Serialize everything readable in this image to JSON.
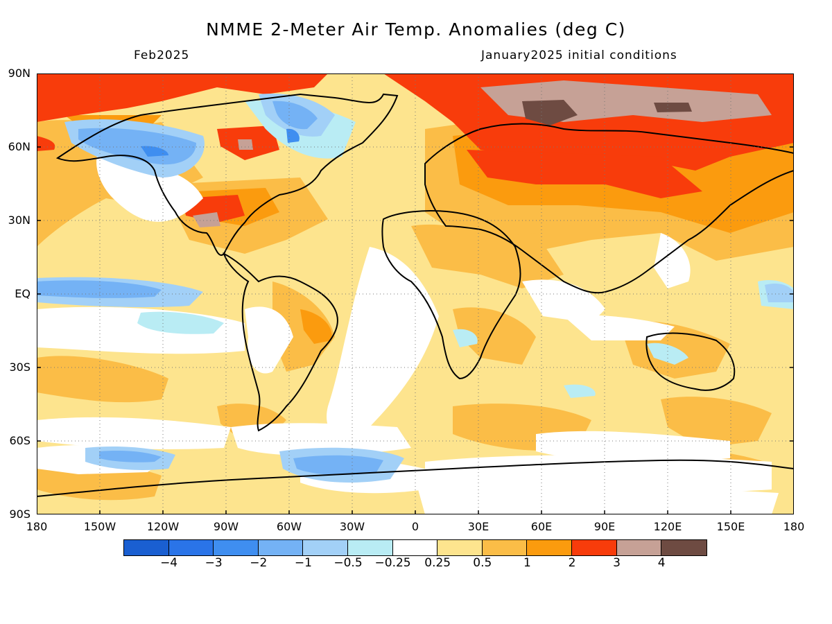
{
  "title": "NMME 2-Meter Air Temp. Anomalies (deg C)",
  "valid_month": "Feb2025",
  "initial_conditions": "January2025 initial conditions",
  "lat_labels": [
    "90N",
    "60N",
    "30N",
    "EQ",
    "30S",
    "60S",
    "90S"
  ],
  "lon_labels": [
    "180",
    "150W",
    "120W",
    "90W",
    "60W",
    "30W",
    "0",
    "30E",
    "60E",
    "90E",
    "120E",
    "150E",
    "180"
  ],
  "colorbar": {
    "colors": [
      "#1a5fd1",
      "#2a74e8",
      "#3f8ef0",
      "#74b2f5",
      "#a2d0f7",
      "#b9ecf4",
      "#ffffff",
      "#fde48e",
      "#fbbd47",
      "#fb9b0e",
      "#f83c0b",
      "#c6a196",
      "#6e4b42"
    ],
    "tick_labels": [
      "−4",
      "−3",
      "−2",
      "−1",
      "−0.5",
      "−0.25",
      "0.25",
      "0.5",
      "1",
      "2",
      "3",
      "4"
    ]
  },
  "map": {
    "projection": "equirectangular",
    "background_color": "#fde48e",
    "coastline_color": "#000000",
    "grid": "dotted"
  }
}
